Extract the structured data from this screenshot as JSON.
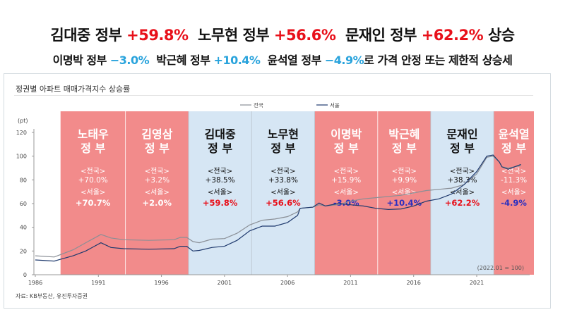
{
  "headline": {
    "line1": [
      {
        "text": "김대중 정부 ",
        "color": "#111111"
      },
      {
        "text": "+59.8%",
        "color": "#e8101a"
      },
      {
        "text": "  노무현 정부 ",
        "color": "#111111"
      },
      {
        "text": "+56.6%",
        "color": "#e8101a"
      },
      {
        "text": "  문재인 정부 ",
        "color": "#111111"
      },
      {
        "text": "+62.2%",
        "color": "#e8101a"
      },
      {
        "text": " 상승",
        "color": "#111111"
      }
    ],
    "line2": [
      {
        "text": "이명박 정부 ",
        "color": "#111111"
      },
      {
        "text": "−3.0%",
        "color": "#29a3dc"
      },
      {
        "text": "  박근혜 정부 ",
        "color": "#111111"
      },
      {
        "text": "+10.4%",
        "color": "#29a3dc"
      },
      {
        "text": "  윤석열 정부 ",
        "color": "#111111"
      },
      {
        "text": "−4.9%",
        "color": "#29a3dc"
      },
      {
        "text": "로 가격 안정 또는 제한적 상승세",
        "color": "#111111"
      }
    ]
  },
  "chart_data": {
    "type": "line",
    "title": "정권별 아파트 매매가격지수 상승률",
    "ylabel": "(pt)",
    "ylim": [
      0,
      120
    ],
    "yticks": [
      0,
      20,
      40,
      60,
      80,
      100,
      120
    ],
    "xlim": [
      1986,
      2025.2
    ],
    "xticks": [
      1986,
      1991,
      1996,
      2001,
      2006,
      2011,
      2016,
      2021
    ],
    "note": "(2022.01 = 100)",
    "legend_position": "top",
    "series": [
      {
        "name": "전국",
        "color": "#8a8f96",
        "points": [
          [
            1986,
            16
          ],
          [
            1987.5,
            15
          ],
          [
            1988,
            17
          ],
          [
            1989,
            21
          ],
          [
            1990,
            27
          ],
          [
            1991.2,
            34
          ],
          [
            1992,
            31
          ],
          [
            1993,
            29.5
          ],
          [
            1995,
            29
          ],
          [
            1997,
            29.5
          ],
          [
            1997.5,
            31.5
          ],
          [
            1998,
            31.5
          ],
          [
            1998.5,
            28
          ],
          [
            1999,
            27
          ],
          [
            2000,
            30
          ],
          [
            2001,
            30.5
          ],
          [
            2002,
            35
          ],
          [
            2003,
            42
          ],
          [
            2004,
            46
          ],
          [
            2005,
            47
          ],
          [
            2006,
            49
          ],
          [
            2006.8,
            53
          ],
          [
            2007,
            56
          ],
          [
            2008,
            57
          ],
          [
            2008.5,
            59
          ],
          [
            2009,
            58
          ],
          [
            2010,
            59
          ],
          [
            2011,
            62
          ],
          [
            2012,
            64
          ],
          [
            2013,
            65
          ],
          [
            2015,
            67
          ],
          [
            2016,
            69
          ],
          [
            2017,
            71
          ],
          [
            2018,
            72
          ],
          [
            2019,
            73
          ],
          [
            2020,
            76
          ],
          [
            2021,
            85
          ],
          [
            2021.8,
            99
          ],
          [
            2022.3,
            100
          ],
          [
            2022.8,
            95
          ],
          [
            2023,
            91
          ],
          [
            2023.5,
            90
          ],
          [
            2024,
            91
          ],
          [
            2024.5,
            92
          ]
        ]
      },
      {
        "name": "서울",
        "color": "#1f3a6e",
        "points": [
          [
            1986,
            12.5
          ],
          [
            1987.5,
            11.5
          ],
          [
            1988,
            13
          ],
          [
            1989,
            16
          ],
          [
            1990,
            20
          ],
          [
            1991.2,
            27
          ],
          [
            1992,
            23
          ],
          [
            1993,
            22
          ],
          [
            1995,
            21.5
          ],
          [
            1997,
            22
          ],
          [
            1997.5,
            24
          ],
          [
            1998,
            24
          ],
          [
            1998.5,
            20
          ],
          [
            1999,
            20.5
          ],
          [
            2000,
            23
          ],
          [
            2001,
            24
          ],
          [
            2002,
            29
          ],
          [
            2003,
            37
          ],
          [
            2004,
            41
          ],
          [
            2005,
            41
          ],
          [
            2006,
            44
          ],
          [
            2006.8,
            50
          ],
          [
            2007,
            56
          ],
          [
            2008,
            57
          ],
          [
            2008.5,
            60.5
          ],
          [
            2009,
            58
          ],
          [
            2010,
            60
          ],
          [
            2011,
            59
          ],
          [
            2012,
            58
          ],
          [
            2013,
            56
          ],
          [
            2014,
            55
          ],
          [
            2015,
            55.5
          ],
          [
            2016,
            58
          ],
          [
            2017,
            62
          ],
          [
            2018,
            64
          ],
          [
            2019,
            68
          ],
          [
            2020,
            76
          ],
          [
            2021,
            87
          ],
          [
            2021.8,
            100
          ],
          [
            2022.3,
            101
          ],
          [
            2022.8,
            95
          ],
          [
            2023,
            91
          ],
          [
            2023.5,
            89
          ],
          [
            2024,
            91
          ],
          [
            2024.5,
            93
          ]
        ]
      }
    ],
    "periods": [
      {
        "name1": "노태우",
        "name2": "정 부",
        "start": 1988.0,
        "end": 1993.15,
        "fill": "#f28b8b",
        "text": "#ffffff",
        "national_label": "<전국>",
        "national": "+70.0%",
        "seoul_label": "<서울>",
        "seoul": "+70.7%",
        "seoul_color": "#ffffff"
      },
      {
        "name1": "김영삼",
        "name2": "정 부",
        "start": 1993.15,
        "end": 1998.15,
        "fill": "#f28b8b",
        "text": "#ffffff",
        "national_label": "<전국>",
        "national": "+3.2%",
        "seoul_label": "<서울>",
        "seoul": "+2.0%",
        "seoul_color": "#ffffff"
      },
      {
        "name1": "김대중",
        "name2": "정 부",
        "start": 1998.15,
        "end": 2003.15,
        "fill": "#d6e6f4",
        "text": "#111111",
        "national_label": "<전국>",
        "national": "+38.5%",
        "seoul_label": "<서울>",
        "seoul": "+59.8%",
        "seoul_color": "#e8101a"
      },
      {
        "name1": "노무현",
        "name2": "정 부",
        "start": 2003.15,
        "end": 2008.15,
        "fill": "#d6e6f4",
        "text": "#111111",
        "national_label": "<전국>",
        "national": "+33.8%",
        "seoul_label": "<서울>",
        "seoul": "+56.6%",
        "seoul_color": "#e8101a"
      },
      {
        "name1": "이명박",
        "name2": "정 부",
        "start": 2008.15,
        "end": 2013.15,
        "fill": "#f28b8b",
        "text": "#ffffff",
        "national_label": "<전국>",
        "national": "+15.9%",
        "seoul_label": "<서울>",
        "seoul": "-3.0%",
        "seoul_color": "#2b2fc0"
      },
      {
        "name1": "박근혜",
        "name2": "정 부",
        "start": 2013.15,
        "end": 2017.35,
        "fill": "#f28b8b",
        "text": "#ffffff",
        "national_label": "<전국>",
        "national": "+9.9%",
        "seoul_label": "<서울>",
        "seoul": "+10.4%",
        "seoul_color": "#2b2fc0"
      },
      {
        "name1": "문재인",
        "name2": "정 부",
        "start": 2017.35,
        "end": 2022.35,
        "fill": "#d6e6f4",
        "text": "#111111",
        "national_label": "<전국>",
        "national": "+38.3%",
        "seoul_label": "<서울>",
        "seoul": "+62.2%",
        "seoul_color": "#e8101a"
      },
      {
        "name1": "윤석열",
        "name2": "정 부",
        "start": 2022.35,
        "end": 2025.6,
        "fill": "#f28b8b",
        "text": "#ffffff",
        "national_label": "<전국>",
        "national": "-11.3%",
        "seoul_label": "<서울>",
        "seoul": "-4.9%",
        "seoul_color": "#2b2fc0"
      }
    ]
  },
  "source": "자료: KB부동산, 유진투자증권"
}
